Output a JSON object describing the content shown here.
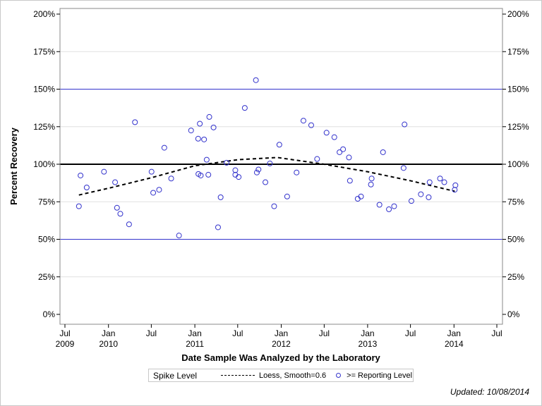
{
  "chart_data": {
    "type": "scatter",
    "ylabel": "Percent Recovery",
    "xlabel": "Date Sample Was Analyzed by the Laboratory",
    "ylim": [
      0,
      200
    ],
    "xlim": [
      "2009-06-01",
      "2014-08-01"
    ],
    "y_ticks": [
      "0%",
      "25%",
      "50%",
      "75%",
      "100%",
      "125%",
      "150%",
      "175%",
      "200%"
    ],
    "y_tick_values": [
      0,
      25,
      50,
      75,
      100,
      125,
      150,
      175,
      200
    ],
    "x_ticks": [
      {
        "date": "2009-07-01",
        "line1": "Jul",
        "line2": "2009"
      },
      {
        "date": "2010-01-01",
        "line1": "Jan",
        "line2": "2010"
      },
      {
        "date": "2010-07-01",
        "line1": "Jul",
        "line2": ""
      },
      {
        "date": "2011-01-01",
        "line1": "Jan",
        "line2": "2011"
      },
      {
        "date": "2011-07-01",
        "line1": "Jul",
        "line2": ""
      },
      {
        "date": "2012-01-01",
        "line1": "Jan",
        "line2": "2012"
      },
      {
        "date": "2012-07-01",
        "line1": "Jul",
        "line2": ""
      },
      {
        "date": "2013-01-01",
        "line1": "Jan",
        "line2": "2013"
      },
      {
        "date": "2013-07-01",
        "line1": "Jul",
        "line2": ""
      },
      {
        "date": "2014-01-01",
        "line1": "Jan",
        "line2": "2014"
      },
      {
        "date": "2014-07-01",
        "line1": "Jul",
        "line2": ""
      }
    ],
    "reference_lines": [
      {
        "value": 100,
        "color": "#000000",
        "label": "Spike Level"
      },
      {
        "value": 50,
        "color": "#3333cc"
      },
      {
        "value": 150,
        "color": "#3333cc"
      }
    ],
    "grid": true,
    "legend_placement": "bottom",
    "colors": {
      "points": "#3333cc",
      "loess": "#000000",
      "grid": "#e0e0e0"
    },
    "series": [
      {
        "name": ">= Reporting Level",
        "kind": "scatter",
        "points": [
          [
            "2009-08-29",
            72
          ],
          [
            "2009-09-05",
            92.5
          ],
          [
            "2009-10-01",
            84.5
          ],
          [
            "2009-12-13",
            95
          ],
          [
            "2010-01-29",
            88
          ],
          [
            "2010-02-06",
            71
          ],
          [
            "2010-02-20",
            67
          ],
          [
            "2010-03-29",
            60
          ],
          [
            "2010-04-23",
            128
          ],
          [
            "2010-07-02",
            95
          ],
          [
            "2010-07-09",
            81
          ],
          [
            "2010-08-03",
            83
          ],
          [
            "2010-08-25",
            111
          ],
          [
            "2010-09-23",
            90.5
          ],
          [
            "2010-10-26",
            52.5
          ],
          [
            "2010-12-16",
            122.5
          ],
          [
            "2011-01-15",
            117
          ],
          [
            "2011-01-16",
            93.5
          ],
          [
            "2011-01-22",
            127
          ],
          [
            "2011-01-26",
            92.5
          ],
          [
            "2011-02-09",
            116.5
          ],
          [
            "2011-02-20",
            103
          ],
          [
            "2011-02-27",
            93
          ],
          [
            "2011-03-03",
            131.5
          ],
          [
            "2011-03-21",
            124.5
          ],
          [
            "2011-04-09",
            58
          ],
          [
            "2011-04-20",
            78
          ],
          [
            "2011-05-15",
            101
          ],
          [
            "2011-06-21",
            96
          ],
          [
            "2011-06-21",
            93
          ],
          [
            "2011-07-05",
            91.5
          ],
          [
            "2011-07-31",
            137.5
          ],
          [
            "2011-09-16",
            156
          ],
          [
            "2011-09-20",
            94.5
          ],
          [
            "2011-09-27",
            96.5
          ],
          [
            "2011-10-26",
            88
          ],
          [
            "2011-11-14",
            100.5
          ],
          [
            "2011-12-02",
            72
          ],
          [
            "2011-12-24",
            113
          ],
          [
            "2012-01-26",
            78.5
          ],
          [
            "2012-03-06",
            94.5
          ],
          [
            "2012-04-04",
            129
          ],
          [
            "2012-05-07",
            126
          ],
          [
            "2012-06-01",
            103.5
          ],
          [
            "2012-07-11",
            121
          ],
          [
            "2012-08-13",
            118
          ],
          [
            "2012-09-04",
            108
          ],
          [
            "2012-09-19",
            110
          ],
          [
            "2012-10-14",
            104.5
          ],
          [
            "2012-10-18",
            89
          ],
          [
            "2012-11-20",
            77
          ],
          [
            "2012-12-04",
            78.5
          ],
          [
            "2013-01-15",
            86.5
          ],
          [
            "2013-01-18",
            90.5
          ],
          [
            "2013-02-20",
            73
          ],
          [
            "2013-03-07",
            108
          ],
          [
            "2013-04-01",
            70
          ],
          [
            "2013-04-23",
            72
          ],
          [
            "2013-06-02",
            97.5
          ],
          [
            "2013-06-06",
            126.5
          ],
          [
            "2013-07-05",
            75.5
          ],
          [
            "2013-08-14",
            80
          ],
          [
            "2013-09-16",
            78
          ],
          [
            "2013-09-20",
            88
          ],
          [
            "2013-11-03",
            90.5
          ],
          [
            "2013-11-21",
            88
          ],
          [
            "2014-01-04",
            83
          ],
          [
            "2014-01-07",
            86
          ]
        ]
      },
      {
        "name": "Loess, Smooth=0.6",
        "kind": "line",
        "points": [
          [
            "2009-08-29",
            79.5
          ],
          [
            "2010-01-01",
            84
          ],
          [
            "2010-07-01",
            91
          ],
          [
            "2011-01-01",
            99
          ],
          [
            "2011-07-01",
            103
          ],
          [
            "2011-12-15",
            104.5
          ],
          [
            "2012-07-01",
            100
          ],
          [
            "2013-01-01",
            95
          ],
          [
            "2013-07-01",
            89
          ],
          [
            "2014-01-04",
            82
          ]
        ]
      }
    ]
  },
  "legend": {
    "spike": "Spike Level",
    "loess": "Loess, Smooth=0.6",
    "points": ">= Reporting Level"
  },
  "footer": {
    "updated": "Updated: 10/08/2014"
  }
}
